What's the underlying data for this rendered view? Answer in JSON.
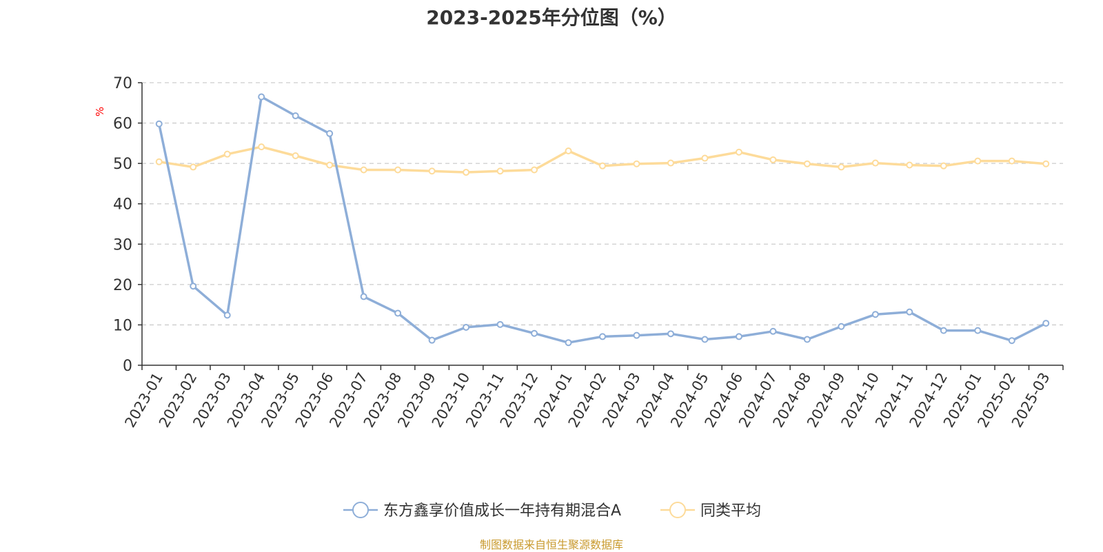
{
  "chart_data": {
    "type": "line",
    "title": "2023-2025年分位图（%）",
    "ylabel": "%",
    "ylim": [
      0,
      70
    ],
    "yticks": [
      0,
      10,
      20,
      30,
      40,
      50,
      60,
      70
    ],
    "grid": true,
    "legend_position": "bottom",
    "categories": [
      "2023-01",
      "2023-02",
      "2023-03",
      "2023-04",
      "2023-05",
      "2023-06",
      "2023-07",
      "2023-08",
      "2023-09",
      "2023-10",
      "2023-11",
      "2023-12",
      "2024-01",
      "2024-02",
      "2024-03",
      "2024-04",
      "2024-05",
      "2024-06",
      "2024-07",
      "2024-08",
      "2024-09",
      "2024-10",
      "2024-11",
      "2024-12",
      "2025-01",
      "2025-02",
      "2025-03"
    ],
    "series": [
      {
        "name": "东方鑫享价值成长一年持有期混合A",
        "color": "#8eaed8",
        "values": [
          59.8,
          19.6,
          12.4,
          66.5,
          61.8,
          57.4,
          17.0,
          12.9,
          6.2,
          9.4,
          10.1,
          7.9,
          5.6,
          7.1,
          7.4,
          7.8,
          6.4,
          7.1,
          8.4,
          6.4,
          9.6,
          12.6,
          13.2,
          8.6,
          8.6,
          6.1,
          10.4
        ]
      },
      {
        "name": "同类平均",
        "color": "#fddb9a",
        "values": [
          50.4,
          49.1,
          52.3,
          54.1,
          51.9,
          49.6,
          48.4,
          48.4,
          48.1,
          47.8,
          48.1,
          48.4,
          53.1,
          49.4,
          49.9,
          50.1,
          51.3,
          52.8,
          50.9,
          49.9,
          49.1,
          50.1,
          49.6,
          49.4,
          50.6,
          50.6,
          49.9
        ]
      }
    ]
  },
  "footer": "制图数据来自恒生聚源数据库"
}
